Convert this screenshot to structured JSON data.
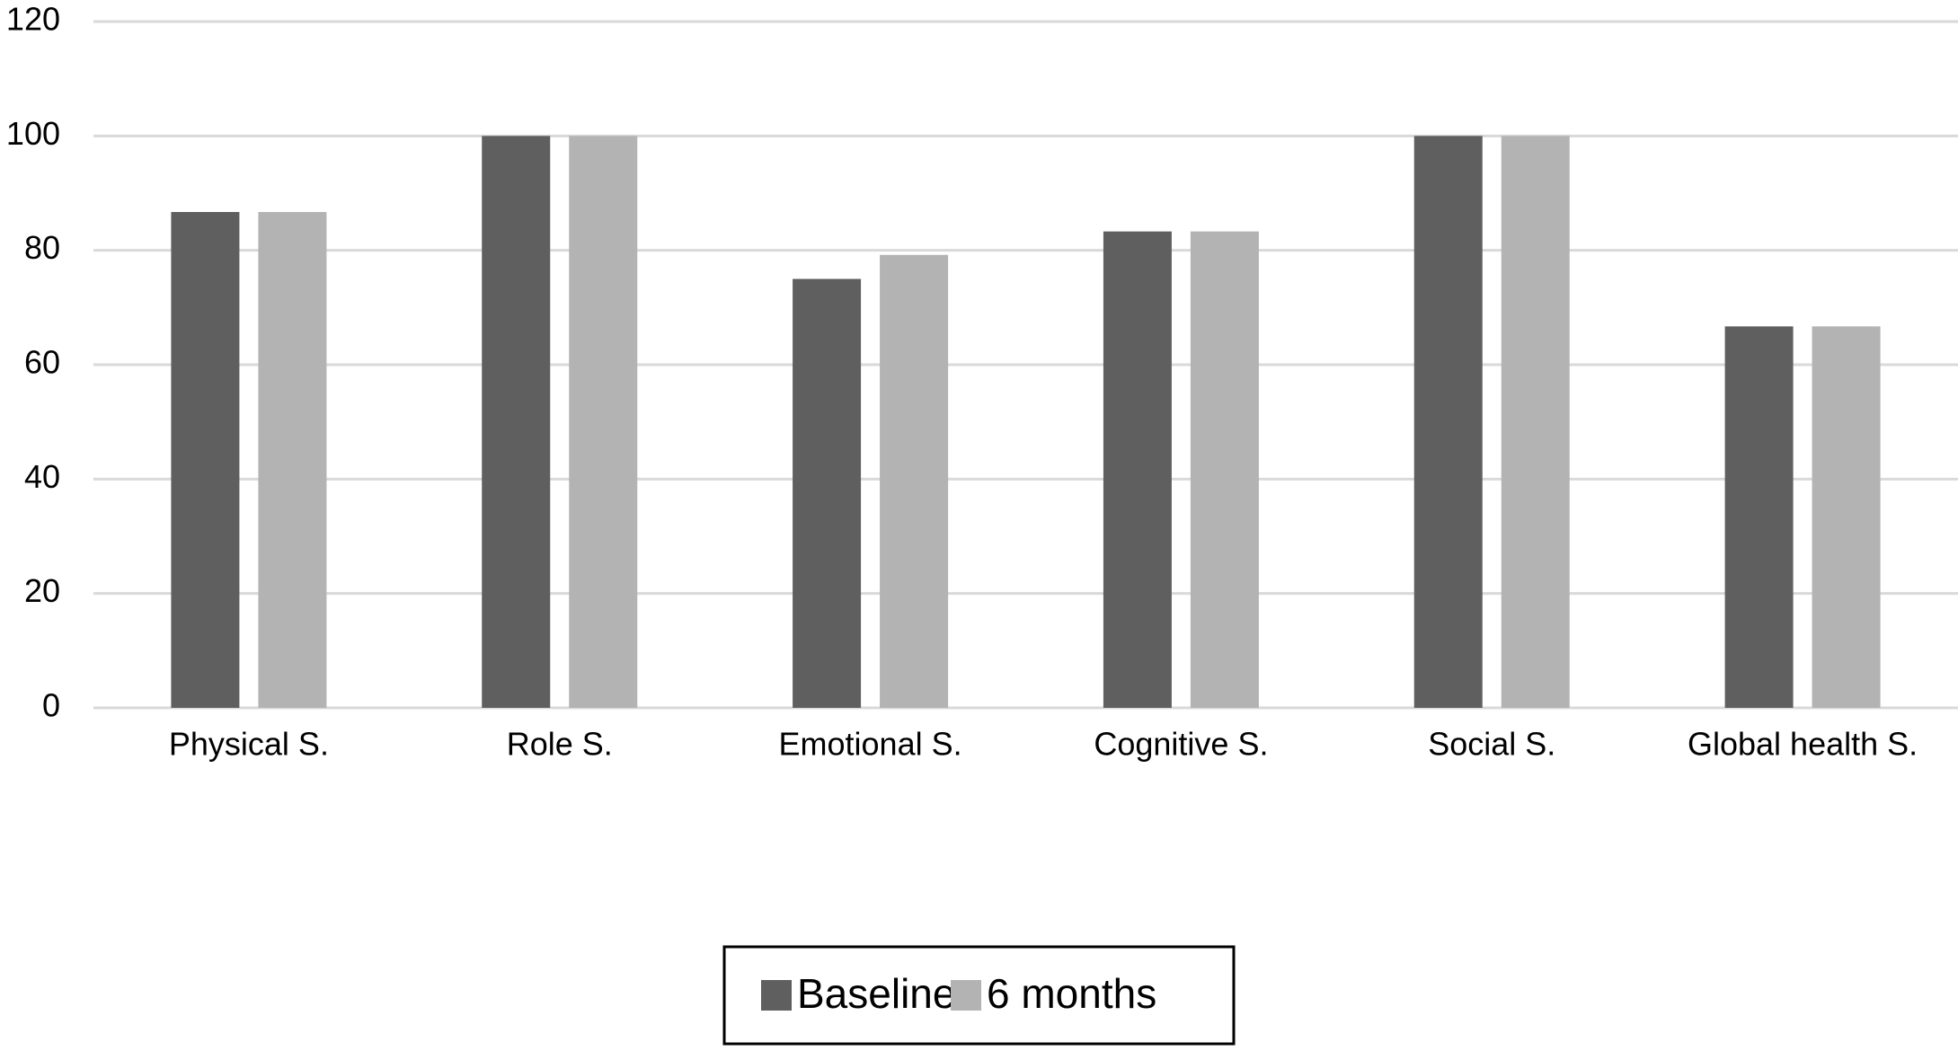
{
  "chart_data": {
    "type": "bar",
    "categories": [
      "Physical S.",
      "Role S.",
      "Emotional S.",
      "Cognitive S.",
      "Social S.",
      "Global health S."
    ],
    "series": [
      {
        "name": "Baseline",
        "color": "#5f5f5f",
        "values": [
          86.7,
          100,
          75,
          83.3,
          100,
          66.7
        ]
      },
      {
        "name": "6 months",
        "color": "#b2b3b2",
        "values": [
          86.7,
          100,
          79.2,
          83.3,
          100,
          66.7
        ]
      }
    ],
    "ylim": [
      0,
      120
    ],
    "yticks": [
      0,
      20,
      40,
      60,
      80,
      100,
      120
    ],
    "grid": true,
    "legend": "bottom"
  }
}
